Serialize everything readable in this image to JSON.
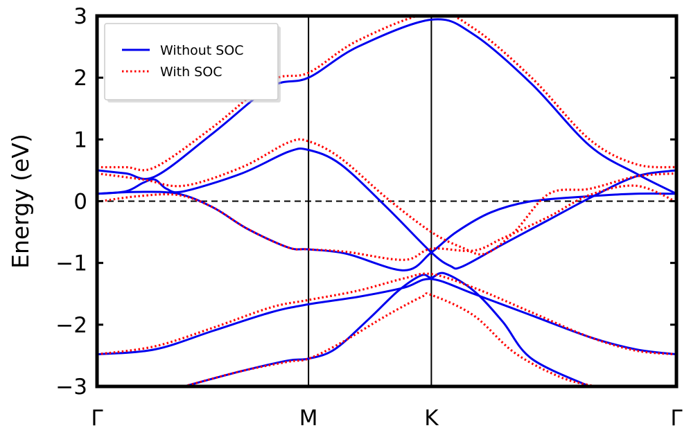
{
  "chart_data": {
    "type": "line",
    "title": "",
    "ylabel": "Energy (eV)",
    "xlabel": "",
    "ylim": [
      -3,
      3
    ],
    "xlim": [
      0,
      1
    ],
    "yticks": [
      -3,
      -2,
      -1,
      0,
      1,
      2,
      3
    ],
    "ytick_labels": [
      "−3",
      "−2",
      "−1",
      "0",
      "1",
      "2",
      "3"
    ],
    "xticks": [
      {
        "label": "Γ",
        "x": 0.0
      },
      {
        "label": "M",
        "x": 0.365
      },
      {
        "label": "K",
        "x": 0.577
      },
      {
        "label": "Γ",
        "x": 1.0
      }
    ],
    "fermi_level": 0,
    "legend": {
      "position": "top-left",
      "entries": [
        {
          "label": "Without SOC",
          "color": "#0000ee",
          "style": "solid"
        },
        {
          "label": "With SOC",
          "color": "#ff0000",
          "style": "dotted"
        }
      ]
    },
    "series": [
      {
        "name": "Without SOC",
        "color": "#0000ee",
        "style": "solid",
        "bands": [
          [
            [
              0,
              -2.48
            ],
            [
              0.1,
              -2.4
            ],
            [
              0.2,
              -2.1
            ],
            [
              0.3,
              -1.8
            ],
            [
              0.365,
              -1.67
            ],
            [
              0.45,
              -1.55
            ],
            [
              0.53,
              -1.4
            ],
            [
              0.577,
              -1.26
            ],
            [
              0.65,
              -1.5
            ],
            [
              0.75,
              -1.85
            ],
            [
              0.85,
              -2.2
            ],
            [
              0.93,
              -2.4
            ],
            [
              1,
              -2.48
            ]
          ],
          [
            [
              0.15,
              -3.0
            ],
            [
              0.25,
              -2.75
            ],
            [
              0.33,
              -2.58
            ],
            [
              0.365,
              -2.55
            ],
            [
              0.41,
              -2.4
            ],
            [
              0.47,
              -1.9
            ],
            [
              0.52,
              -1.45
            ],
            [
              0.56,
              -1.2
            ],
            [
              0.577,
              -1.24
            ],
            [
              0.6,
              -1.17
            ],
            [
              0.65,
              -1.45
            ],
            [
              0.7,
              -1.95
            ],
            [
              0.75,
              -2.55
            ],
            [
              0.85,
              -3.0
            ]
          ],
          [
            [
              0,
              0.12
            ],
            [
              0.07,
              0.15
            ],
            [
              0.14,
              0.12
            ],
            [
              0.2,
              -0.1
            ],
            [
              0.26,
              -0.45
            ],
            [
              0.33,
              -0.75
            ],
            [
              0.365,
              -0.78
            ],
            [
              0.43,
              -0.85
            ],
            [
              0.53,
              -1.12
            ],
            [
              0.577,
              -0.83
            ],
            [
              0.62,
              -0.5
            ],
            [
              0.68,
              -0.18
            ],
            [
              0.75,
              0.0
            ],
            [
              0.85,
              0.08
            ],
            [
              0.93,
              0.12
            ],
            [
              1,
              0.12
            ]
          ],
          [
            [
              0,
              0.12
            ],
            [
              0.05,
              0.16
            ],
            [
              0.08,
              0.3
            ],
            [
              0.1,
              0.35
            ],
            [
              0.12,
              0.2
            ],
            [
              0.15,
              0.16
            ],
            [
              0.25,
              0.45
            ],
            [
              0.33,
              0.8
            ],
            [
              0.365,
              0.83
            ],
            [
              0.42,
              0.6
            ],
            [
              0.5,
              -0.1
            ],
            [
              0.577,
              -0.83
            ],
            [
              0.61,
              -1.05
            ],
            [
              0.63,
              -1.06
            ],
            [
              0.7,
              -0.7
            ],
            [
              0.78,
              -0.3
            ],
            [
              0.85,
              0.05
            ],
            [
              0.93,
              0.4
            ],
            [
              1,
              0.5
            ]
          ],
          [
            [
              0,
              0.5
            ],
            [
              0.05,
              0.45
            ],
            [
              0.1,
              0.4
            ],
            [
              0.2,
              1.1
            ],
            [
              0.3,
              1.85
            ],
            [
              0.365,
              2.0
            ],
            [
              0.45,
              2.5
            ],
            [
              0.577,
              2.94
            ],
            [
              0.65,
              2.7
            ],
            [
              0.75,
              1.9
            ],
            [
              0.85,
              0.9
            ],
            [
              0.93,
              0.45
            ],
            [
              1,
              0.12
            ]
          ]
        ]
      },
      {
        "name": "With SOC",
        "color": "#ff0000",
        "style": "dotted",
        "bands": [
          [
            [
              0,
              -2.48
            ],
            [
              0.1,
              -2.35
            ],
            [
              0.2,
              -2.05
            ],
            [
              0.3,
              -1.72
            ],
            [
              0.365,
              -1.6
            ],
            [
              0.45,
              -1.45
            ],
            [
              0.53,
              -1.25
            ],
            [
              0.577,
              -1.18
            ],
            [
              0.65,
              -1.4
            ],
            [
              0.75,
              -1.8
            ],
            [
              0.85,
              -2.2
            ],
            [
              0.93,
              -2.42
            ],
            [
              1,
              -2.48
            ]
          ],
          [
            [
              0.15,
              -3.0
            ],
            [
              0.25,
              -2.75
            ],
            [
              0.33,
              -2.6
            ],
            [
              0.365,
              -2.55
            ],
            [
              0.42,
              -2.3
            ],
            [
              0.5,
              -1.85
            ],
            [
              0.56,
              -1.55
            ],
            [
              0.577,
              -1.52
            ],
            [
              0.65,
              -1.85
            ],
            [
              0.72,
              -2.45
            ],
            [
              0.8,
              -2.85
            ],
            [
              0.86,
              -3.0
            ]
          ],
          [
            [
              0,
              -0.01
            ],
            [
              0.07,
              0.08
            ],
            [
              0.14,
              0.1
            ],
            [
              0.2,
              -0.1
            ],
            [
              0.26,
              -0.45
            ],
            [
              0.33,
              -0.75
            ],
            [
              0.365,
              -0.78
            ],
            [
              0.43,
              -0.82
            ],
            [
              0.53,
              -0.95
            ],
            [
              0.577,
              -0.77
            ],
            [
              0.65,
              -0.8
            ],
            [
              0.7,
              -0.6
            ],
            [
              0.78,
              -0.25
            ],
            [
              0.85,
              0.1
            ],
            [
              0.93,
              0.25
            ],
            [
              1,
              -0.01
            ]
          ],
          [
            [
              0,
              0.45
            ],
            [
              0.08,
              0.35
            ],
            [
              0.15,
              0.25
            ],
            [
              0.25,
              0.55
            ],
            [
              0.33,
              0.95
            ],
            [
              0.365,
              0.97
            ],
            [
              0.42,
              0.7
            ],
            [
              0.5,
              0.05
            ],
            [
              0.577,
              -0.5
            ],
            [
              0.63,
              -0.75
            ],
            [
              0.67,
              -0.85
            ],
            [
              0.72,
              -0.5
            ],
            [
              0.78,
              0.12
            ],
            [
              0.85,
              0.2
            ],
            [
              0.93,
              0.4
            ],
            [
              1,
              0.45
            ]
          ],
          [
            [
              0,
              0.55
            ],
            [
              0.05,
              0.55
            ],
            [
              0.1,
              0.55
            ],
            [
              0.2,
              1.2
            ],
            [
              0.3,
              1.95
            ],
            [
              0.365,
              2.08
            ],
            [
              0.45,
              2.6
            ],
            [
              0.577,
              3.05
            ],
            [
              0.65,
              2.8
            ],
            [
              0.75,
              2.0
            ],
            [
              0.85,
              1.0
            ],
            [
              0.93,
              0.6
            ],
            [
              1,
              0.55
            ]
          ]
        ]
      }
    ]
  }
}
